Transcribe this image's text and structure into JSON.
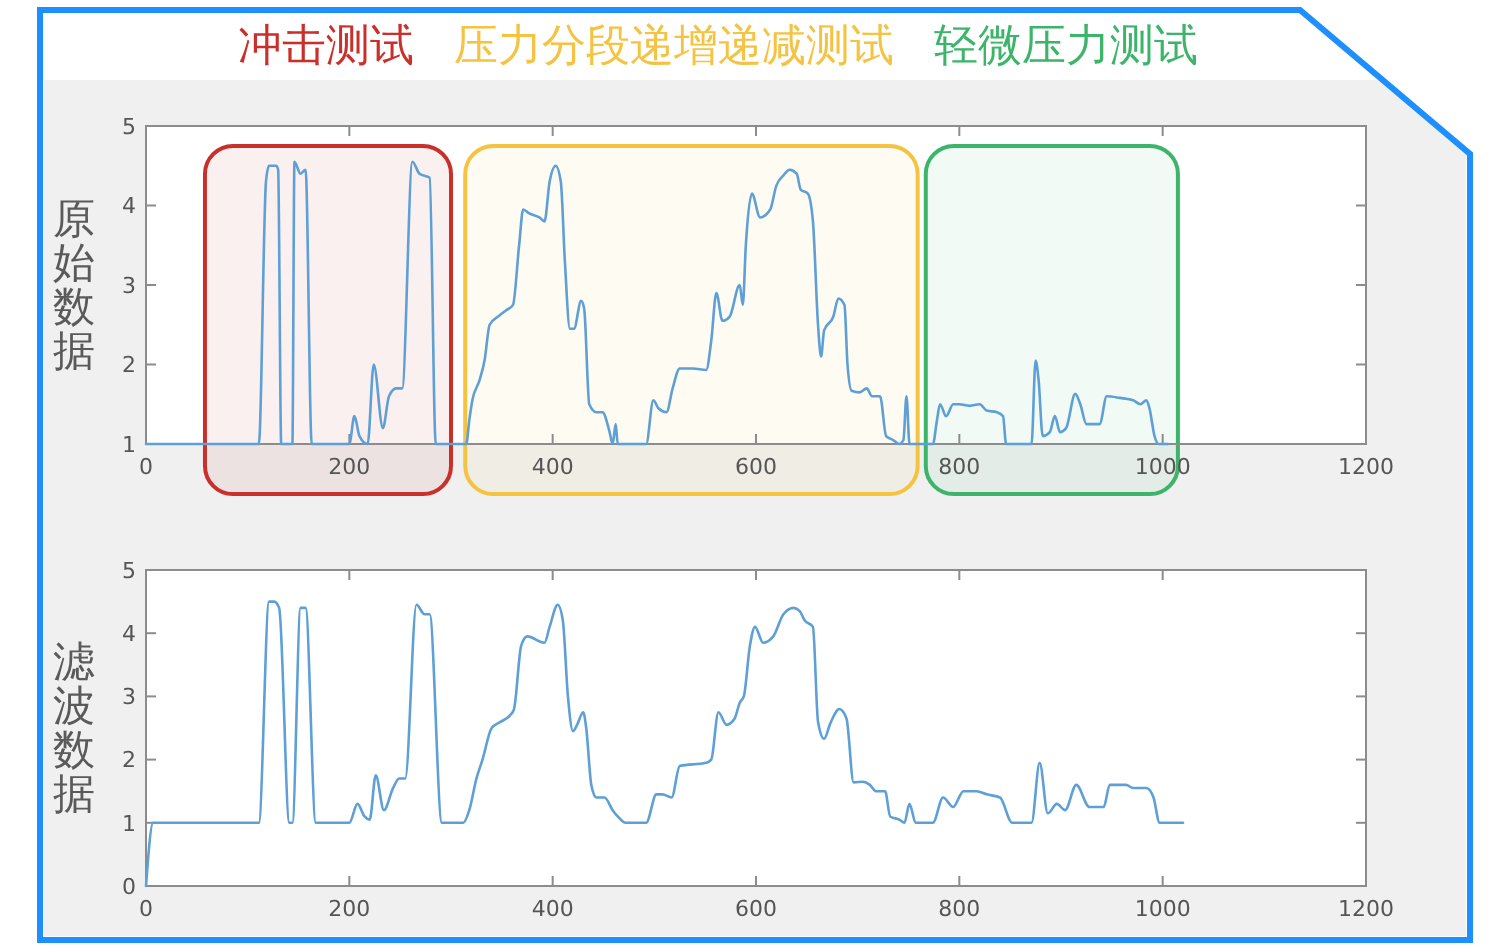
{
  "chart_data": [
    {
      "type": "line",
      "ylabel": "原始数据",
      "xlim": [
        0,
        1200
      ],
      "xticks": [
        0,
        200,
        400,
        600,
        800,
        1000,
        1200
      ],
      "ylim": [
        1,
        5
      ],
      "yticks": [
        1,
        2,
        3,
        4,
        5
      ],
      "color": "#5e9fd6",
      "x": [
        0,
        111,
        118,
        121,
        128,
        130,
        133,
        134,
        144,
        146,
        152,
        157,
        163,
        200,
        205,
        210,
        218,
        224,
        233,
        239,
        246,
        252,
        262,
        269,
        279,
        285,
        315,
        318,
        321,
        328,
        333,
        338,
        348,
        354,
        361,
        367,
        371,
        377,
        387,
        392,
        397,
        403,
        408,
        412,
        417,
        421,
        428,
        431,
        436,
        443,
        449,
        456,
        459,
        462,
        464,
        492,
        499,
        504,
        512,
        518,
        525,
        538,
        551,
        556,
        561,
        567,
        574,
        584,
        587,
        590,
        596,
        604,
        614,
        620,
        627,
        633,
        640,
        644,
        651,
        656,
        661,
        664,
        667,
        676,
        681,
        687,
        690,
        694,
        702,
        709,
        714,
        722,
        728,
        735,
        741,
        745,
        748,
        751,
        774,
        778,
        781,
        787,
        794,
        800,
        810,
        820,
        827,
        837,
        843,
        846,
        871,
        875,
        878,
        882,
        889,
        894,
        899,
        905,
        914,
        919,
        925,
        938,
        945,
        958,
        971,
        978,
        984,
        987,
        992,
        996,
        1005
      ],
      "values": [
        1,
        1,
        4.3,
        4.5,
        4.5,
        4.45,
        1,
        1,
        1,
        4.55,
        4.4,
        4.45,
        1,
        1,
        1.35,
        1.1,
        1,
        2,
        1.2,
        1.6,
        1.7,
        1.7,
        4.55,
        4.4,
        4.35,
        1,
        1,
        1.3,
        1.55,
        1.8,
        2.05,
        2.5,
        2.62,
        2.68,
        2.75,
        3.5,
        3.95,
        3.9,
        3.85,
        3.8,
        4.3,
        4.5,
        4.3,
        3.3,
        2.45,
        2.45,
        2.8,
        2.7,
        1.5,
        1.4,
        1.4,
        1.15,
        1,
        1.25,
        1,
        1,
        1.55,
        1.45,
        1.4,
        1.7,
        1.95,
        1.95,
        1.93,
        2.3,
        2.9,
        2.55,
        2.6,
        3,
        2.75,
        3.5,
        4.15,
        3.85,
        3.95,
        4.25,
        4.38,
        4.45,
        4.4,
        4.2,
        4.15,
        3.8,
        2.5,
        2.1,
        2.43,
        2.6,
        2.83,
        2.75,
        2,
        1.67,
        1.65,
        1.7,
        1.6,
        1.6,
        1.1,
        1.05,
        1,
        1.05,
        1.6,
        1,
        1,
        1.3,
        1.5,
        1.35,
        1.5,
        1.5,
        1.48,
        1.5,
        1.42,
        1.4,
        1.35,
        1,
        1,
        2.05,
        1.8,
        1.1,
        1.15,
        1.35,
        1.15,
        1.2,
        1.63,
        1.5,
        1.25,
        1.25,
        1.6,
        1.58,
        1.55,
        1.5,
        1.55,
        1.45,
        1.1,
        1,
        1
      ],
      "bands": [
        {
          "axis": "x",
          "from": 58,
          "to": 300,
          "label": "冲击测试",
          "color": "#c9302c"
        },
        {
          "axis": "x",
          "from": 314,
          "to": 759,
          "label": "压力分段递增递减测试",
          "color": "#f5c342"
        },
        {
          "axis": "x",
          "from": 767,
          "to": 1015,
          "label": "轻微压力测试",
          "color": "#3cb56a"
        }
      ]
    },
    {
      "type": "line",
      "ylabel": "滤波数据",
      "xlim": [
        0,
        1200
      ],
      "xticks": [
        0,
        200,
        400,
        600,
        800,
        1000,
        1200
      ],
      "ylim": [
        0,
        5
      ],
      "yticks": [
        0,
        1,
        2,
        3,
        4,
        5
      ],
      "color": "#5e9fd6",
      "x": [
        0,
        7,
        111,
        121,
        126,
        131,
        141,
        144,
        152,
        157,
        167,
        200,
        208,
        215,
        220,
        226,
        234,
        243,
        249,
        255,
        266,
        274,
        279,
        291,
        312,
        318,
        325,
        331,
        340,
        349,
        358,
        362,
        369,
        375,
        392,
        397,
        405,
        410,
        415,
        420,
        424,
        430,
        433,
        438,
        443,
        451,
        459,
        464,
        472,
        492,
        502,
        508,
        517,
        525,
        551,
        556,
        563,
        571,
        579,
        584,
        588,
        594,
        599,
        607,
        617,
        627,
        637,
        643,
        648,
        656,
        661,
        667,
        673,
        682,
        689,
        696,
        705,
        712,
        718,
        727,
        732,
        741,
        746,
        751,
        757,
        774,
        784,
        794,
        804,
        817,
        827,
        840,
        852,
        871,
        879,
        887,
        896,
        904,
        915,
        928,
        942,
        948,
        964,
        971,
        984,
        991,
        997,
        1020
      ],
      "values": [
        0,
        1,
        1,
        4.5,
        4.5,
        4.4,
        1,
        1,
        4.4,
        4.4,
        1,
        1,
        1.3,
        1.1,
        1.05,
        1.75,
        1.2,
        1.55,
        1.7,
        1.7,
        4.45,
        4.3,
        4.3,
        1,
        1,
        1.2,
        1.7,
        2,
        2.5,
        2.6,
        2.7,
        2.8,
        3.8,
        3.95,
        3.85,
        4.1,
        4.45,
        4.2,
        3,
        2.45,
        2.55,
        2.75,
        2.5,
        1.6,
        1.4,
        1.4,
        1.2,
        1.1,
        1,
        1,
        1.45,
        1.45,
        1.4,
        1.9,
        1.95,
        2,
        2.75,
        2.55,
        2.65,
        2.9,
        3,
        3.8,
        4.1,
        3.85,
        3.95,
        4.3,
        4.4,
        4.35,
        4.2,
        4.1,
        2.6,
        2.33,
        2.57,
        2.8,
        2.65,
        1.64,
        1.65,
        1.6,
        1.5,
        1.5,
        1.1,
        1.05,
        1,
        1.3,
        1,
        1,
        1.4,
        1.25,
        1.5,
        1.5,
        1.45,
        1.4,
        1,
        1,
        1.95,
        1.15,
        1.3,
        1.2,
        1.6,
        1.25,
        1.25,
        1.6,
        1.6,
        1.55,
        1.55,
        1.4,
        1,
        1
      ]
    }
  ]
}
